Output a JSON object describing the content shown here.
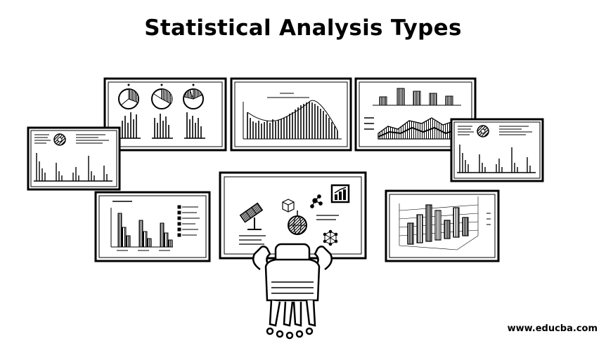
{
  "page": {
    "title": "Statistical Analysis Types",
    "footer": "www.educba.com"
  }
}
